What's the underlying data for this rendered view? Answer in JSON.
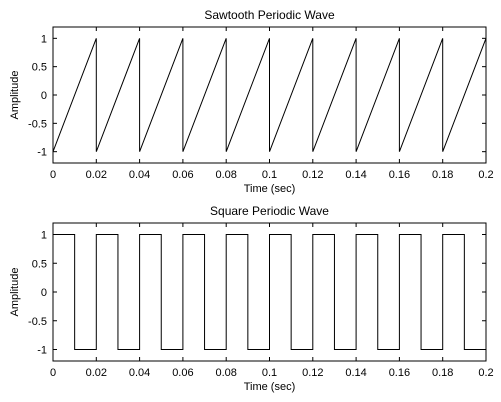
{
  "chart_data": [
    {
      "type": "line",
      "title": "Sawtooth Periodic Wave",
      "xlabel": "Time (sec)",
      "ylabel": "Amplitude",
      "xlim": [
        0,
        0.2
      ],
      "ylim": [
        -1.2,
        1.2
      ],
      "xticks": [
        0,
        0.02,
        0.04,
        0.06,
        0.08,
        0.1,
        0.12,
        0.14,
        0.16,
        0.18,
        0.2
      ],
      "xtick_labels": [
        "0",
        "0.02",
        "0.04",
        "0.06",
        "0.08",
        "0.1",
        "0.12",
        "0.14",
        "0.16",
        "0.18",
        "0.2"
      ],
      "yticks": [
        -1,
        -0.5,
        0,
        0.5,
        1
      ],
      "ytick_labels": [
        "-1",
        "-0.5",
        "0",
        "0.5",
        "1"
      ],
      "grid": false,
      "series": [
        {
          "x": [
            0,
            0.02,
            0.02,
            0.04,
            0.04,
            0.06,
            0.06,
            0.08,
            0.08,
            0.1,
            0.1,
            0.12,
            0.12,
            0.14,
            0.14,
            0.16,
            0.16,
            0.18,
            0.18,
            0.2,
            0.2
          ],
          "y": [
            -1,
            1,
            -1,
            1,
            -1,
            1,
            -1,
            1,
            -1,
            1,
            -1,
            1,
            -1,
            1,
            -1,
            1,
            -1,
            1,
            -1,
            1,
            -1
          ]
        }
      ]
    },
    {
      "type": "line",
      "title": "Square Periodic Wave",
      "xlabel": "Time (sec)",
      "ylabel": "Amplitude",
      "xlim": [
        0,
        0.2
      ],
      "ylim": [
        -1.2,
        1.2
      ],
      "xticks": [
        0,
        0.02,
        0.04,
        0.06,
        0.08,
        0.1,
        0.12,
        0.14,
        0.16,
        0.18,
        0.2
      ],
      "xtick_labels": [
        "0",
        "0.02",
        "0.04",
        "0.06",
        "0.08",
        "0.1",
        "0.12",
        "0.14",
        "0.16",
        "0.18",
        "0.2"
      ],
      "yticks": [
        -1,
        -0.5,
        0,
        0.5,
        1
      ],
      "ytick_labels": [
        "-1",
        "-0.5",
        "0",
        "0.5",
        "1"
      ],
      "grid": false,
      "series": [
        {
          "x": [
            0,
            0.01,
            0.01,
            0.02,
            0.02,
            0.03,
            0.03,
            0.04,
            0.04,
            0.05,
            0.05,
            0.06,
            0.06,
            0.07,
            0.07,
            0.08,
            0.08,
            0.09,
            0.09,
            0.1,
            0.1,
            0.11,
            0.11,
            0.12,
            0.12,
            0.13,
            0.13,
            0.14,
            0.14,
            0.15,
            0.15,
            0.16,
            0.16,
            0.17,
            0.17,
            0.18,
            0.18,
            0.19,
            0.19,
            0.2
          ],
          "y": [
            1,
            1,
            -1,
            -1,
            1,
            1,
            -1,
            -1,
            1,
            1,
            -1,
            -1,
            1,
            1,
            -1,
            -1,
            1,
            1,
            -1,
            -1,
            1,
            1,
            -1,
            -1,
            1,
            1,
            -1,
            -1,
            1,
            1,
            -1,
            -1,
            1,
            1,
            -1,
            -1,
            1,
            1,
            -1,
            -1
          ]
        }
      ]
    }
  ]
}
